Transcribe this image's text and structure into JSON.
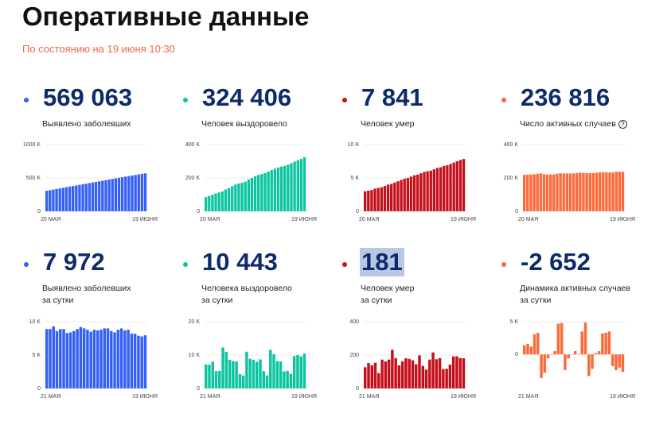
{
  "header": {
    "title": "Оперативные данные",
    "subtitle": "По состоянию на 19 июня 10:30"
  },
  "cards": [
    {
      "value": "569 063",
      "label": "Выявлено заболевших",
      "label2": "",
      "color": "#3460f5",
      "help": false
    },
    {
      "value": "324 406",
      "label": "Человек выздоровело",
      "label2": "",
      "color": "#0cc5a0",
      "help": false
    },
    {
      "value": "7 841",
      "label": "Человек умер",
      "label2": "",
      "color": "#c4101b",
      "help": false
    },
    {
      "value": "236 816",
      "label": "Число активных случаев",
      "label2": "",
      "color": "#fa6a3a",
      "help": true,
      "help_icon": "?"
    },
    {
      "value": "7 972",
      "label": "Выявлено заболевших",
      "label2": "за сутки",
      "color": "#3460f5",
      "help": false
    },
    {
      "value": "10 443",
      "label": "Человека выздоровело",
      "label2": "за сутки",
      "color": "#0cc5a0",
      "help": false
    },
    {
      "value": "181",
      "label": "Человек умер",
      "label2": "за сутки",
      "color": "#c4101b",
      "help": false,
      "selected": true
    },
    {
      "value": "-2 652",
      "label": "Динамика активных случаев",
      "label2": "за сутки",
      "color": "#fa6a3a",
      "help": false
    }
  ],
  "chart_data": [
    {
      "type": "bar",
      "x_first": "20 МАЯ",
      "x_last": "19 ИЮНЯ",
      "yticks": [
        "0",
        "500 K",
        "1000 K"
      ],
      "ylim": [
        0,
        1000000
      ],
      "values": [
        308000,
        317000,
        326000,
        335000,
        344000,
        353000,
        362000,
        371000,
        379000,
        387000,
        396000,
        405000,
        414000,
        423000,
        432000,
        441000,
        449000,
        458000,
        467000,
        476000,
        485000,
        494000,
        502000,
        511000,
        520000,
        528000,
        537000,
        545000,
        553000,
        561000,
        569063
      ]
    },
    {
      "type": "bar",
      "x_first": "20 МАЯ",
      "x_last": "19 ИЮНЯ",
      "yticks": [
        "0",
        "200 K",
        "400 K"
      ],
      "ylim": [
        0,
        400000
      ],
      "values": [
        85000,
        92000,
        99000,
        107000,
        113000,
        119000,
        131000,
        139000,
        151000,
        160000,
        167000,
        171000,
        178000,
        190000,
        200000,
        210000,
        218000,
        223000,
        229000,
        238000,
        247000,
        255000,
        263000,
        268000,
        273000,
        279000,
        288000,
        298000,
        306000,
        314000,
        324406
      ]
    },
    {
      "type": "bar",
      "x_first": "20 МАЯ",
      "x_last": "19 ИЮНЯ",
      "yticks": [
        "0",
        "5 K",
        "10 K"
      ],
      "ylim": [
        0,
        10000
      ],
      "values": [
        3000,
        3100,
        3200,
        3400,
        3500,
        3600,
        3800,
        4000,
        4100,
        4300,
        4500,
        4700,
        4900,
        5000,
        5200,
        5400,
        5500,
        5700,
        5900,
        6000,
        6100,
        6300,
        6500,
        6600,
        6800,
        6900,
        7100,
        7300,
        7500,
        7700,
        7841
      ]
    },
    {
      "type": "bar",
      "x_first": "20 МАЯ",
      "x_last": "19 ИЮНЯ",
      "yticks": [
        "0",
        "200 K",
        "400 K"
      ],
      "ylim": [
        0,
        400000
      ],
      "values": [
        219000,
        220000,
        221000,
        222000,
        225000,
        227000,
        223000,
        221000,
        221000,
        221000,
        225000,
        228000,
        227000,
        227000,
        227000,
        227000,
        229000,
        232000,
        230000,
        229000,
        229000,
        229000,
        232000,
        234000,
        235000,
        234000,
        233000,
        233000,
        238000,
        237000,
        236816
      ]
    },
    {
      "type": "bar",
      "x_first": "21 МАЯ",
      "x_last": "19 ИЮНЯ",
      "yticks": [
        "0",
        "5 K",
        "10 K"
      ],
      "ylim": [
        0,
        10000
      ],
      "values": [
        8900,
        8900,
        9300,
        8600,
        8900,
        8900,
        8300,
        8400,
        8600,
        8900,
        9200,
        9000,
        8800,
        8500,
        8800,
        8700,
        8800,
        9000,
        9000,
        8600,
        8400,
        8800,
        9000,
        8700,
        8800,
        8200,
        8200,
        7900,
        7800,
        7972
      ]
    },
    {
      "type": "bar",
      "x_first": "21 МАЯ",
      "x_last": "19 ИЮНЯ",
      "yticks": [
        "0",
        "10 K",
        "20 K"
      ],
      "ylim": [
        0,
        20000
      ],
      "values": [
        7200,
        7100,
        8000,
        5200,
        5300,
        12300,
        11000,
        8600,
        8200,
        8100,
        4300,
        3900,
        11000,
        8900,
        8600,
        8000,
        8700,
        5200,
        3900,
        11600,
        10300,
        8200,
        8100,
        5100,
        5300,
        4400,
        9700,
        10000,
        9600,
        10443
      ]
    },
    {
      "type": "bar",
      "x_first": "21 МАЯ",
      "x_last": "19 ИЮНЯ",
      "yticks": [
        "0",
        "200",
        "400"
      ],
      "ylim": [
        0,
        400
      ],
      "values": [
        127,
        152,
        139,
        154,
        92,
        173,
        162,
        173,
        232,
        182,
        138,
        163,
        181,
        177,
        169,
        145,
        198,
        135,
        113,
        173,
        216,
        175,
        182,
        116,
        118,
        143,
        192,
        193,
        182,
        181
      ]
    },
    {
      "type": "bar",
      "x_first": "21 МАЯ",
      "x_last": "19 ИЮНЯ",
      "yticks": [
        "0",
        "5 K"
      ],
      "ylim": [
        -5200,
        5000
      ],
      "values": [
        1400,
        1600,
        1200,
        3100,
        3300,
        -3600,
        -2800,
        -600,
        50,
        500,
        4700,
        4800,
        -2400,
        -600,
        0,
        500,
        -50,
        3500,
        4900,
        -3300,
        -2200,
        200,
        500,
        3200,
        3300,
        3500,
        -1800,
        -2400,
        -2000,
        -2652
      ]
    }
  ]
}
